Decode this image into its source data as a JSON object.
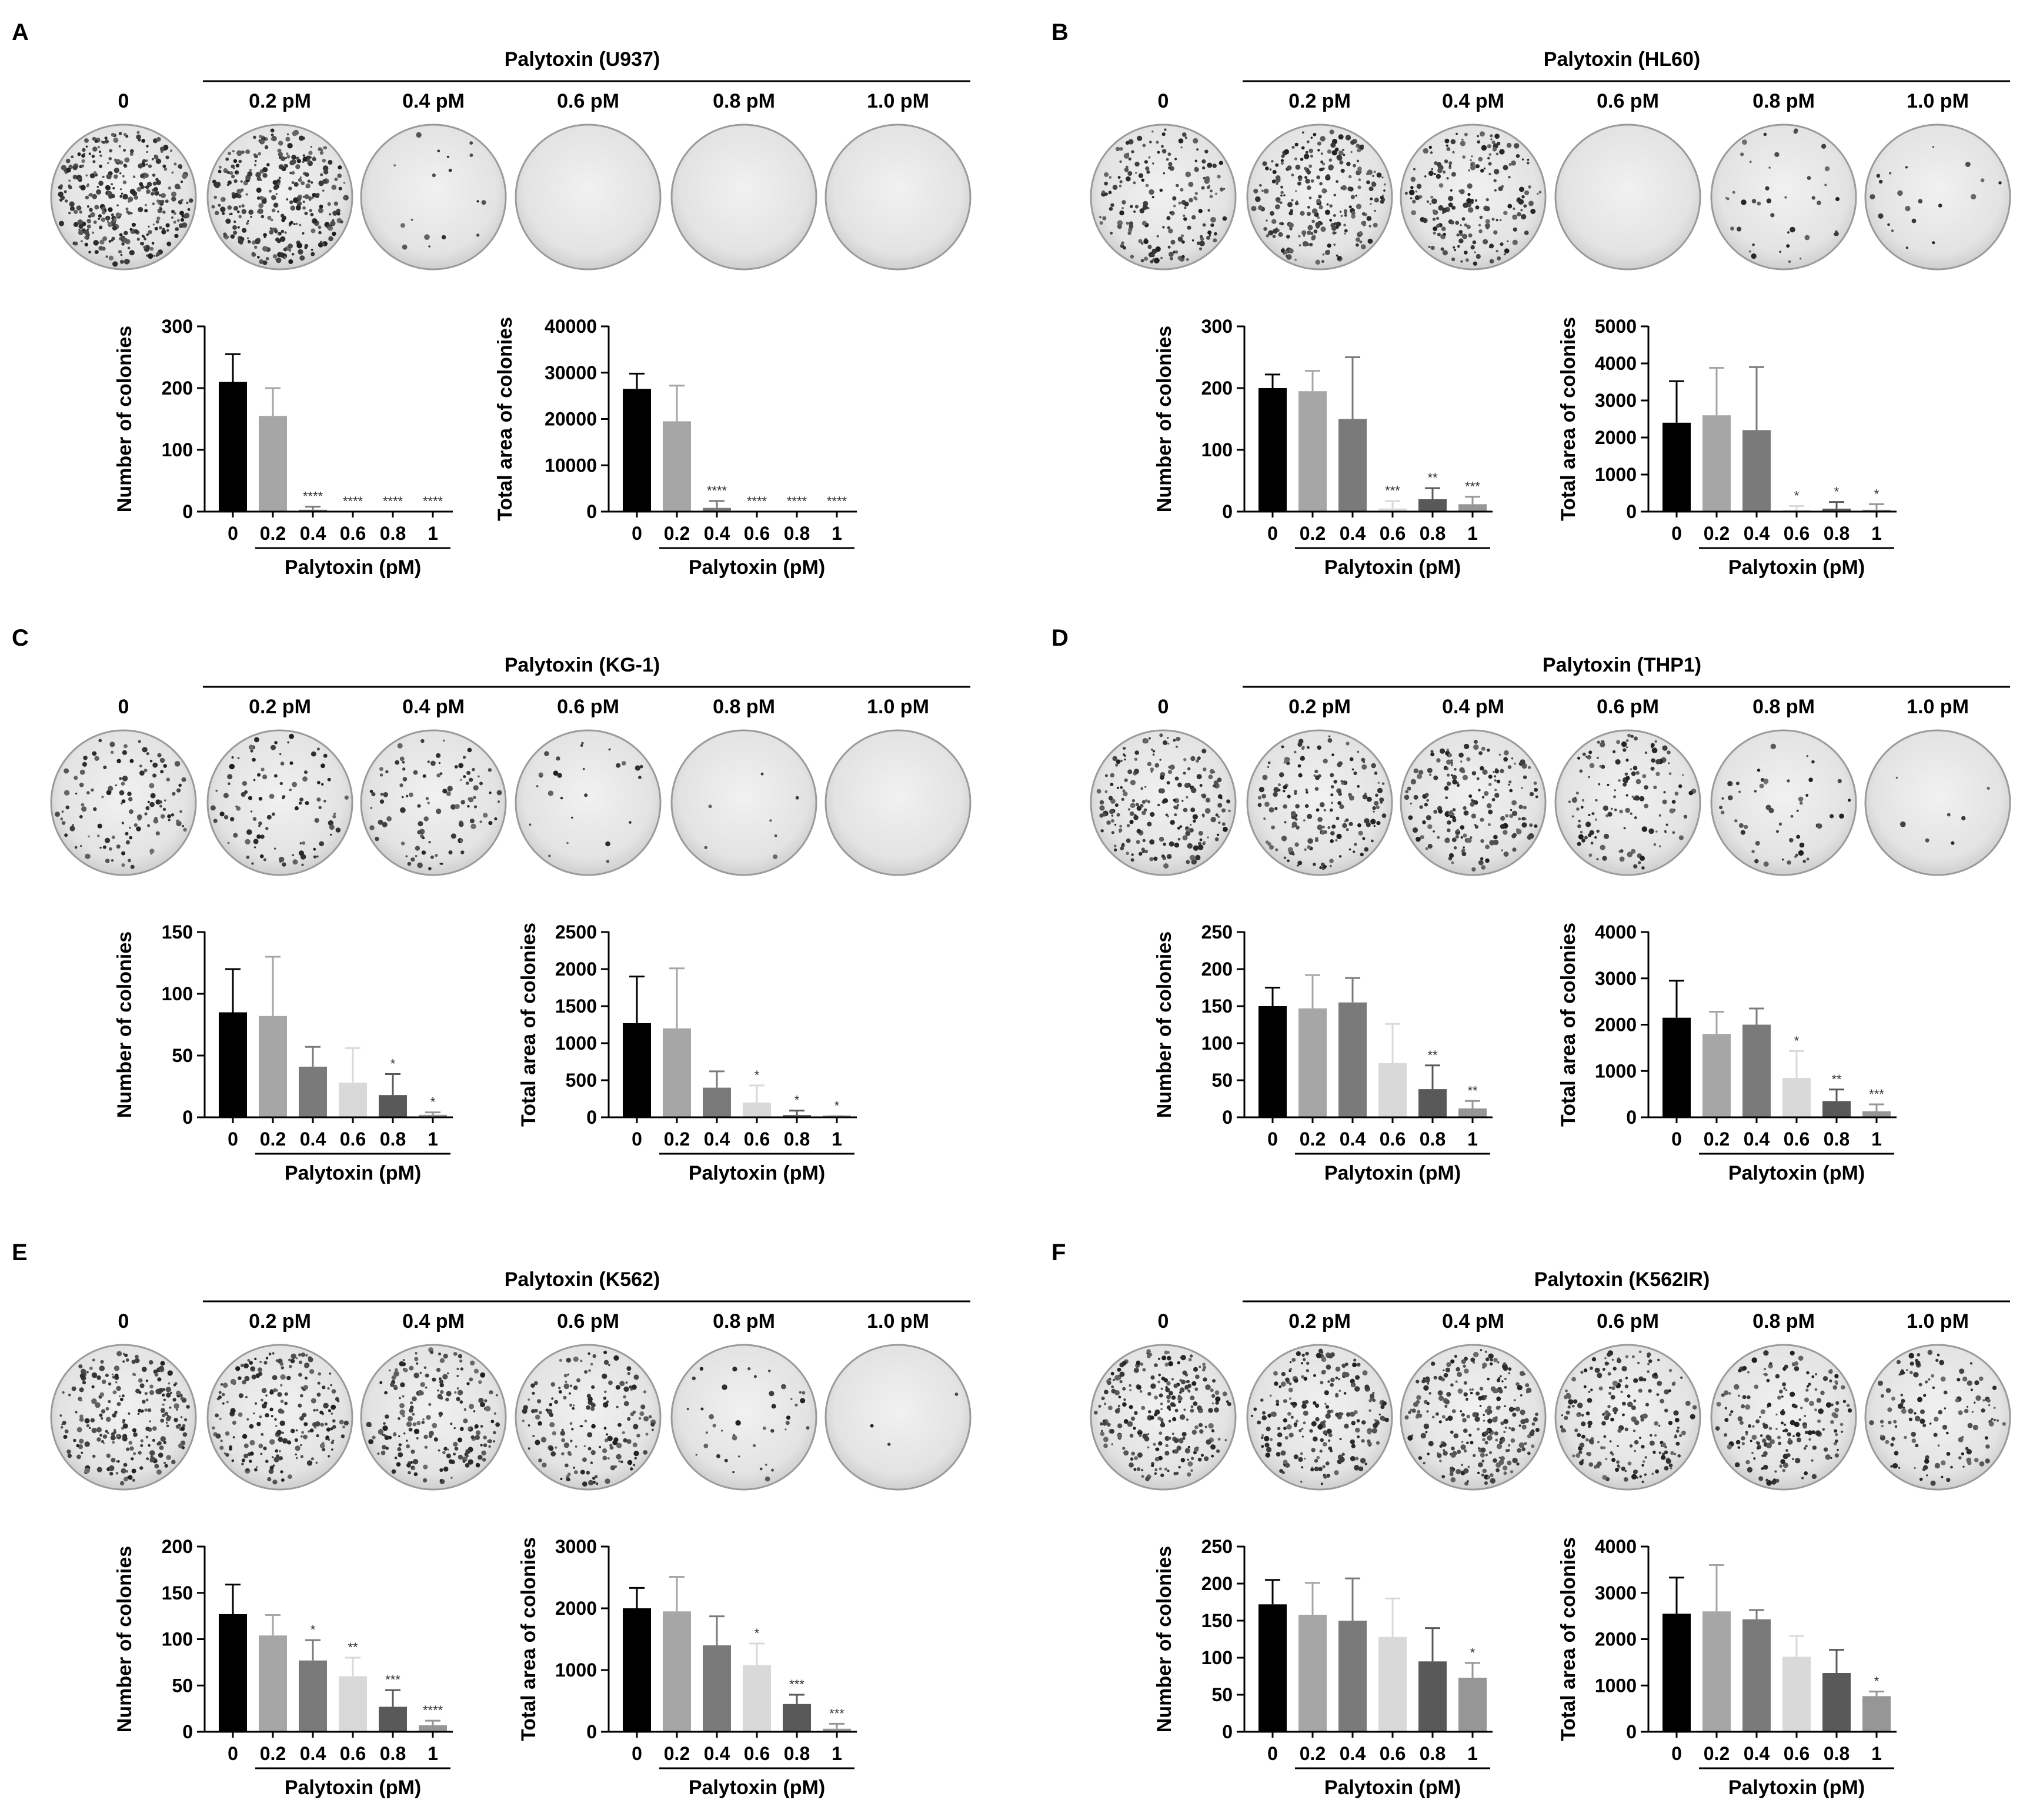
{
  "dose_labels": [
    "0",
    "0.2 pM",
    "0.4 pM",
    "0.6 pM",
    "0.8 pM",
    "1.0 pM"
  ],
  "x_categories": [
    "0",
    "0.2",
    "0.4",
    "0.6",
    "0.8",
    "1"
  ],
  "xlabel": "Palytoxin (pM)",
  "ylabel_count": "Number of colonies",
  "ylabel_area": "Total area of colonies",
  "palette": [
    "#000000",
    "#a6a6a6",
    "#7a7a7a",
    "#d9d9d9",
    "#595959",
    "#969696"
  ],
  "chart_data": [
    {
      "panel": "A",
      "cell_line": "U937",
      "title": "Palytoxin (U937)",
      "plate_density": [
        1.0,
        0.95,
        0.05,
        0.0,
        0.0,
        0.0
      ],
      "charts": [
        {
          "type": "bar",
          "ylabel": "Number of colonies",
          "xlabel": "Palytoxin (pM)",
          "categories": [
            "0",
            "0.2",
            "0.4",
            "0.6",
            "0.8",
            "1"
          ],
          "ylim": [
            0,
            300
          ],
          "yticks": [
            0,
            100,
            200,
            300
          ],
          "values": [
            210,
            155,
            3,
            0,
            0,
            0
          ],
          "errors": [
            45,
            45,
            5,
            0,
            0,
            0
          ],
          "annotations": [
            "",
            "",
            "****",
            "****",
            "****",
            "****"
          ]
        },
        {
          "type": "bar",
          "ylabel": "Total area of colonies",
          "xlabel": "Palytoxin (pM)",
          "categories": [
            "0",
            "0.2",
            "0.4",
            "0.6",
            "0.8",
            "1"
          ],
          "ylim": [
            0,
            40000
          ],
          "yticks": [
            0,
            10000,
            20000,
            30000,
            40000
          ],
          "values": [
            26500,
            19500,
            800,
            0,
            0,
            0
          ],
          "errors": [
            3300,
            7700,
            1500,
            0,
            0,
            0
          ],
          "annotations": [
            "",
            "",
            "****",
            "****",
            "****",
            "****"
          ]
        }
      ]
    },
    {
      "panel": "B",
      "cell_line": "HL60",
      "title": "Palytoxin (HL60)",
      "plate_density": [
        0.55,
        0.75,
        0.6,
        0.0,
        0.12,
        0.06
      ],
      "charts": [
        {
          "type": "bar",
          "ylabel": "Number of colonies",
          "xlabel": "Palytoxin (pM)",
          "categories": [
            "0",
            "0.2",
            "0.4",
            "0.6",
            "0.8",
            "1"
          ],
          "ylim": [
            0,
            300
          ],
          "yticks": [
            0,
            100,
            200,
            300
          ],
          "values": [
            200,
            195,
            150,
            5,
            20,
            12
          ],
          "errors": [
            22,
            33,
            100,
            12,
            18,
            12
          ],
          "annotations": [
            "",
            "",
            "",
            "***",
            "**",
            "***"
          ]
        },
        {
          "type": "bar",
          "ylabel": "Total area of colonies",
          "xlabel": "Palytoxin (pM)",
          "categories": [
            "0",
            "0.2",
            "0.4",
            "0.6",
            "0.8",
            "1"
          ],
          "ylim": [
            0,
            5000
          ],
          "yticks": [
            0,
            1000,
            2000,
            3000,
            4000,
            5000
          ],
          "values": [
            2400,
            2600,
            2200,
            30,
            80,
            50
          ],
          "errors": [
            1120,
            1280,
            1700,
            120,
            180,
            150
          ],
          "annotations": [
            "",
            "",
            "",
            "*",
            "*",
            "*"
          ]
        }
      ]
    },
    {
      "panel": "C",
      "cell_line": "KG-1",
      "title": "Palytoxin (KG-1)",
      "plate_density": [
        0.35,
        0.3,
        0.3,
        0.08,
        0.02,
        0.0
      ],
      "charts": [
        {
          "type": "bar",
          "ylabel": "Number of colonies",
          "xlabel": "Palytoxin (pM)",
          "categories": [
            "0",
            "0.2",
            "0.4",
            "0.6",
            "0.8",
            "1"
          ],
          "ylim": [
            0,
            150
          ],
          "yticks": [
            0,
            50,
            100,
            150
          ],
          "values": [
            85,
            82,
            41,
            28,
            18,
            2
          ],
          "errors": [
            35,
            48,
            16,
            28,
            17,
            2
          ],
          "annotations": [
            "",
            "",
            "",
            "",
            "*",
            "*"
          ]
        },
        {
          "type": "bar",
          "ylabel": "Total area of colonies",
          "xlabel": "Palytoxin (pM)",
          "categories": [
            "0",
            "0.2",
            "0.4",
            "0.6",
            "0.8",
            "1"
          ],
          "ylim": [
            0,
            2500
          ],
          "yticks": [
            0,
            500,
            1000,
            1500,
            2000,
            2500
          ],
          "values": [
            1270,
            1200,
            400,
            200,
            30,
            5
          ],
          "errors": [
            630,
            810,
            220,
            230,
            60,
            10
          ],
          "annotations": [
            "",
            "",
            "",
            "*",
            "*",
            "*"
          ]
        }
      ]
    },
    {
      "panel": "D",
      "cell_line": "THP1",
      "title": "Palytoxin (THP1)",
      "plate_density": [
        0.6,
        0.5,
        0.55,
        0.4,
        0.15,
        0.02
      ],
      "charts": [
        {
          "type": "bar",
          "ylabel": "Number of colonies",
          "xlabel": "Palytoxin (pM)",
          "categories": [
            "0",
            "0.2",
            "0.4",
            "0.6",
            "0.8",
            "1"
          ],
          "ylim": [
            0,
            250
          ],
          "yticks": [
            0,
            50,
            100,
            150,
            200,
            250
          ],
          "values": [
            150,
            147,
            155,
            73,
            38,
            12
          ],
          "errors": [
            25,
            45,
            33,
            53,
            32,
            10
          ],
          "annotations": [
            "",
            "",
            "",
            "",
            "**",
            "**"
          ]
        },
        {
          "type": "bar",
          "ylabel": "Total area of colonies",
          "xlabel": "Palytoxin (pM)",
          "categories": [
            "0",
            "0.2",
            "0.4",
            "0.6",
            "0.8",
            "1"
          ],
          "ylim": [
            0,
            4000
          ],
          "yticks": [
            0,
            1000,
            2000,
            3000,
            4000
          ],
          "values": [
            2150,
            1800,
            2000,
            850,
            350,
            130
          ],
          "errors": [
            800,
            480,
            350,
            580,
            250,
            150
          ],
          "annotations": [
            "",
            "",
            "",
            "*",
            "**",
            "***"
          ]
        }
      ]
    },
    {
      "panel": "E",
      "cell_line": "K562",
      "title": "Palytoxin (K562)",
      "plate_density": [
        0.7,
        0.65,
        0.6,
        0.5,
        0.12,
        0.01
      ],
      "charts": [
        {
          "type": "bar",
          "ylabel": "Number of colonies",
          "xlabel": "Palytoxin (pM)",
          "categories": [
            "0",
            "0.2",
            "0.4",
            "0.6",
            "0.8",
            "1"
          ],
          "ylim": [
            0,
            200
          ],
          "yticks": [
            0,
            50,
            100,
            150,
            200
          ],
          "values": [
            127,
            104,
            77,
            60,
            27,
            7
          ],
          "errors": [
            32,
            22,
            22,
            20,
            18,
            5
          ],
          "annotations": [
            "",
            "",
            "*",
            "**",
            "***",
            "****"
          ]
        },
        {
          "type": "bar",
          "ylabel": "Total area of colonies",
          "xlabel": "Palytoxin (pM)",
          "categories": [
            "0",
            "0.2",
            "0.4",
            "0.6",
            "0.8",
            "1"
          ],
          "ylim": [
            0,
            3000
          ],
          "yticks": [
            0,
            1000,
            2000,
            3000
          ],
          "values": [
            2000,
            1950,
            1400,
            1080,
            450,
            50
          ],
          "errors": [
            330,
            560,
            470,
            350,
            150,
            80
          ],
          "annotations": [
            "",
            "",
            "",
            "*",
            "***",
            "***"
          ]
        }
      ]
    },
    {
      "panel": "F",
      "cell_line": "K562IR",
      "title": "Palytoxin (K562IR)",
      "plate_density": [
        0.75,
        0.65,
        0.75,
        0.6,
        0.55,
        0.4
      ],
      "charts": [
        {
          "type": "bar",
          "ylabel": "Number of colonies",
          "xlabel": "Palytoxin (pM)",
          "categories": [
            "0",
            "0.2",
            "0.4",
            "0.6",
            "0.8",
            "1"
          ],
          "ylim": [
            0,
            250
          ],
          "yticks": [
            0,
            50,
            100,
            150,
            200,
            250
          ],
          "values": [
            172,
            158,
            150,
            128,
            95,
            73
          ],
          "errors": [
            33,
            43,
            57,
            52,
            45,
            20
          ],
          "annotations": [
            "",
            "",
            "",
            "",
            "",
            "*"
          ]
        },
        {
          "type": "bar",
          "ylabel": "Total area of colonies",
          "xlabel": "Palytoxin (pM)",
          "categories": [
            "0",
            "0.2",
            "0.4",
            "0.6",
            "0.8",
            "1"
          ],
          "ylim": [
            0,
            4000
          ],
          "yticks": [
            0,
            1000,
            2000,
            3000,
            4000
          ],
          "values": [
            2550,
            2600,
            2430,
            1620,
            1270,
            770
          ],
          "errors": [
            780,
            1000,
            200,
            450,
            500,
            100
          ],
          "annotations": [
            "",
            "",
            "",
            "",
            "",
            "*"
          ]
        }
      ]
    }
  ]
}
